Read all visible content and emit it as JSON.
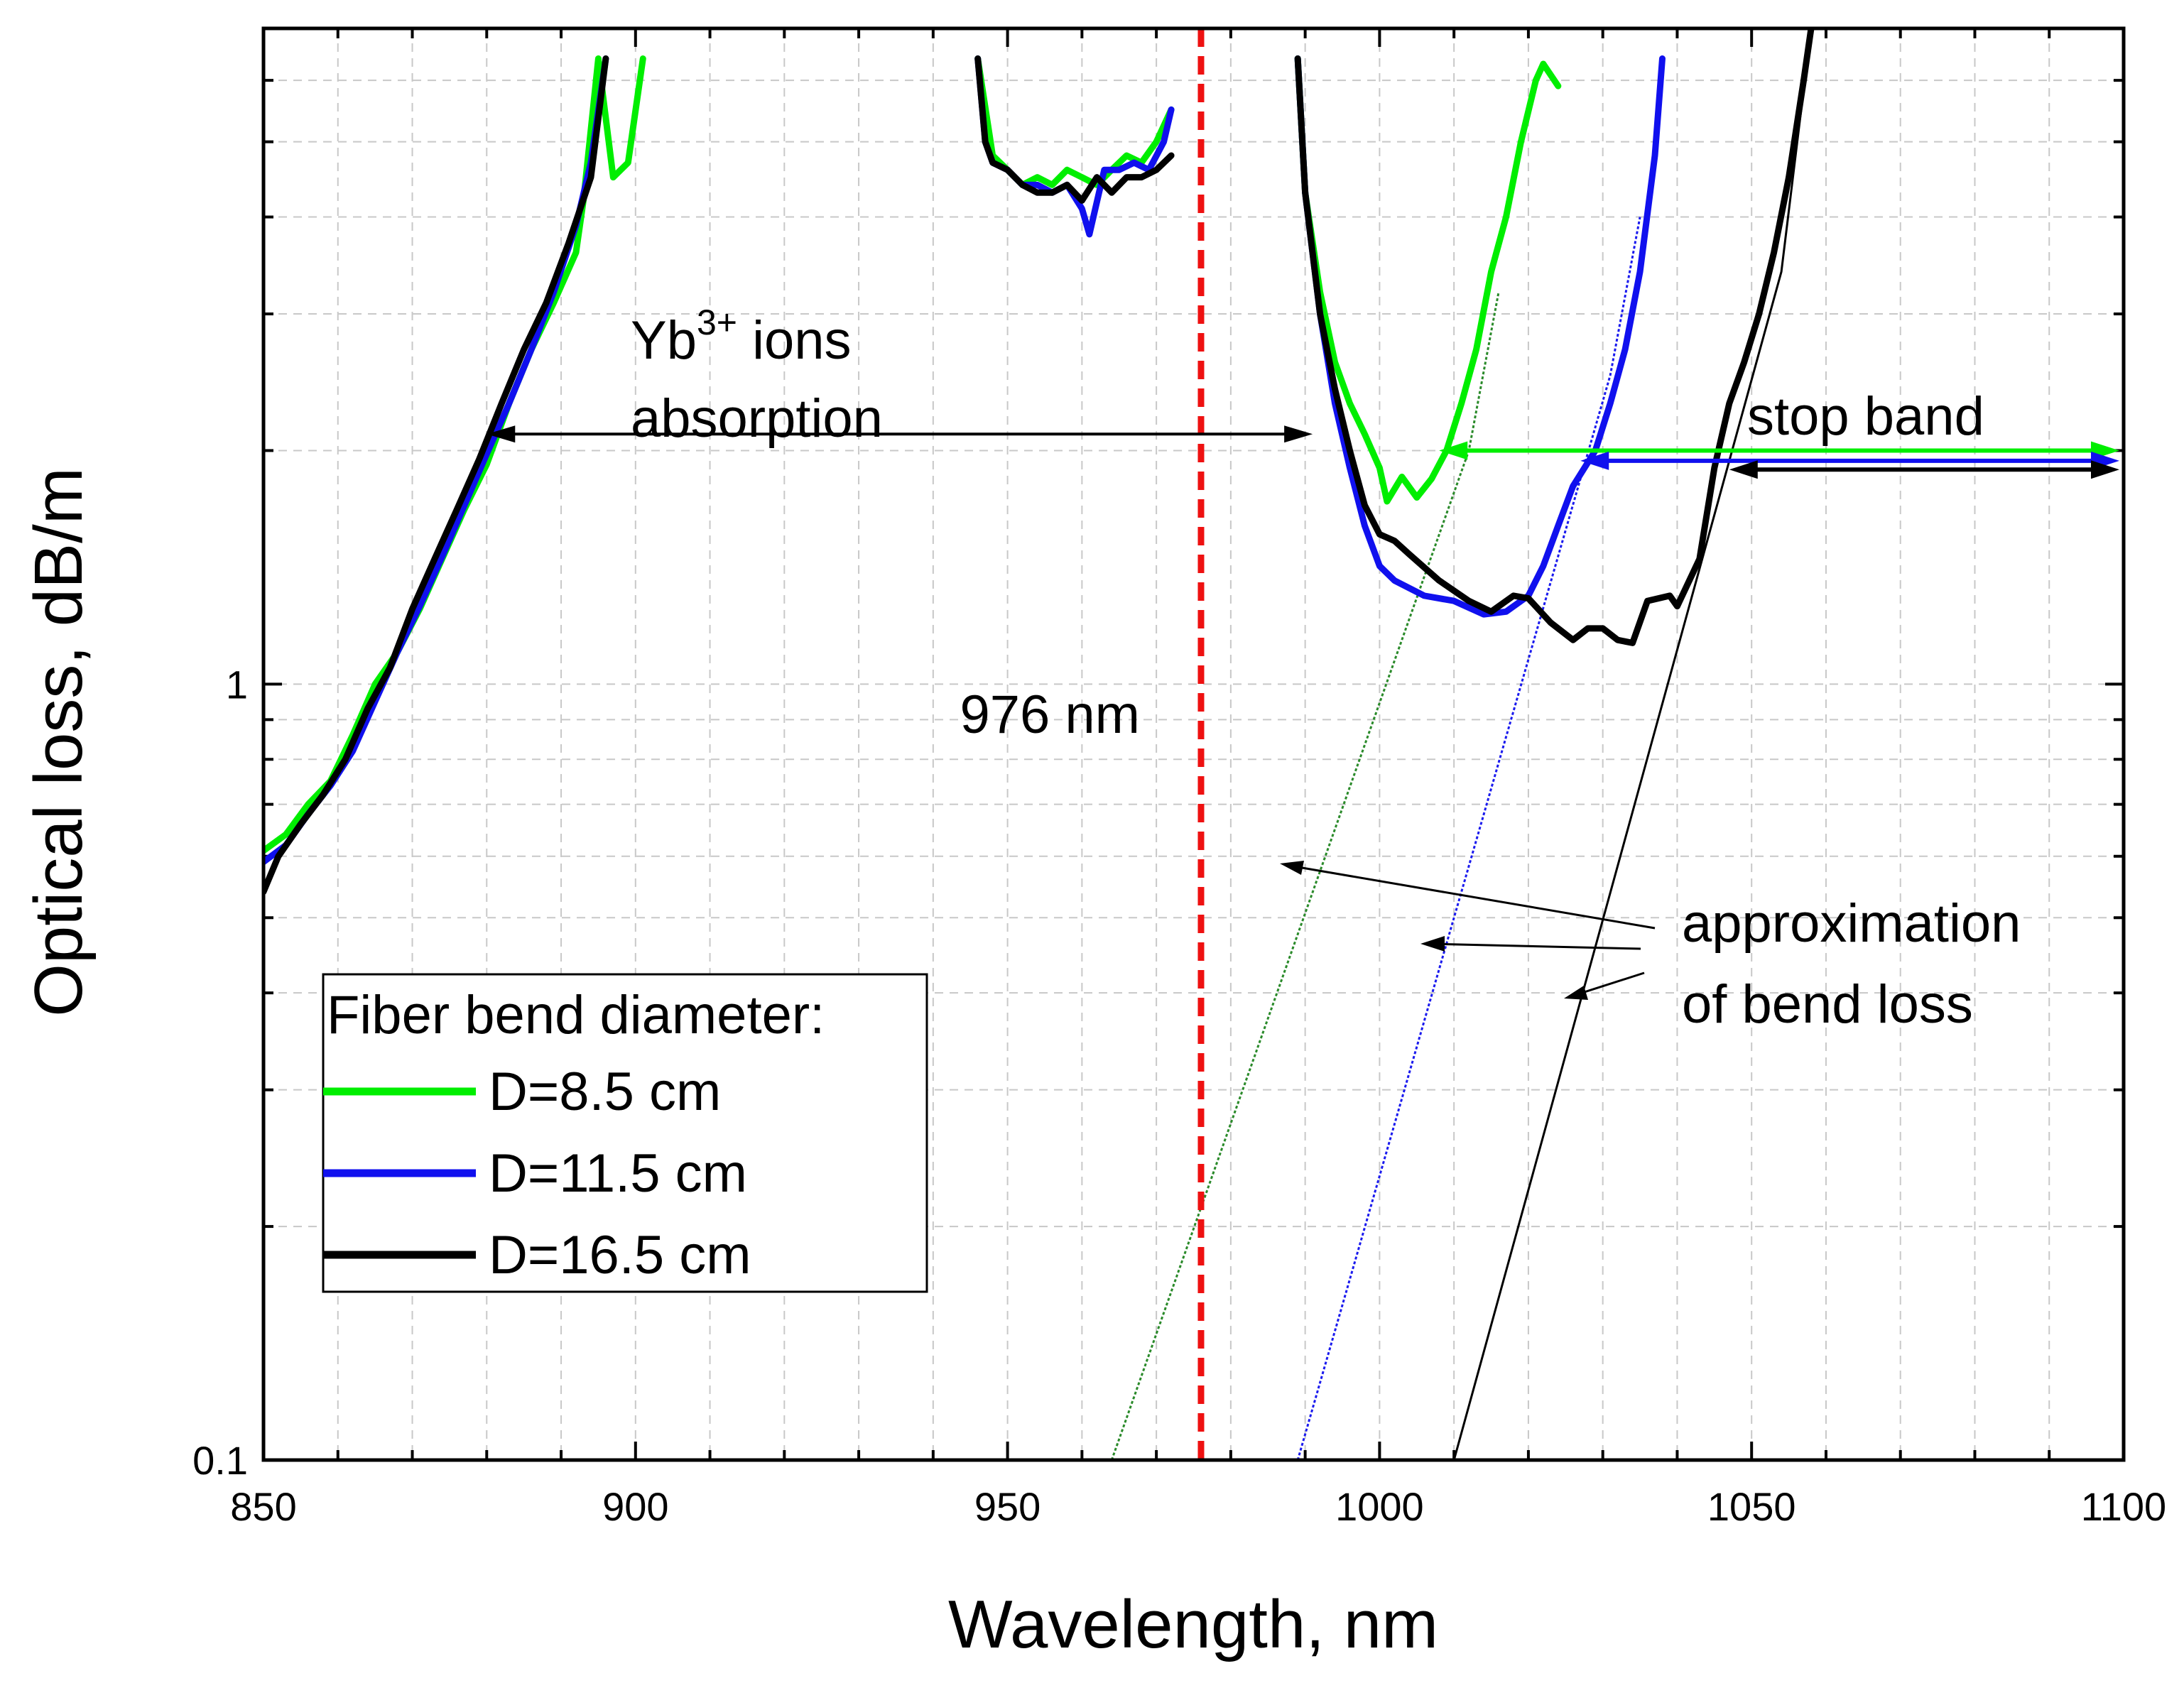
{
  "chart_data": {
    "type": "line",
    "title": "",
    "xlabel": "Wavelength, nm",
    "ylabel": "Optical loss, dB/m",
    "xlim": [
      850,
      1100
    ],
    "ylim": [
      0.1,
      7
    ],
    "yscale": "log",
    "grid": true,
    "x_ticks": [
      850,
      900,
      950,
      1000,
      1050,
      1100
    ],
    "x_tick_labels": [
      "850",
      "900",
      "950",
      "1000",
      "1050",
      "1100"
    ],
    "y_ticks": [
      0.1,
      1
    ],
    "y_tick_labels": [
      "0.1",
      "1"
    ],
    "series": [
      {
        "name": "D=8.5 cm",
        "color": "#00ee00",
        "segments": [
          [
            [
              850,
              0.61
            ],
            [
              853,
              0.64
            ],
            [
              856,
              0.7
            ],
            [
              859,
              0.75
            ],
            [
              862,
              0.86
            ],
            [
              865,
              1.0
            ],
            [
              868,
              1.1
            ],
            [
              871,
              1.25
            ],
            [
              874,
              1.45
            ],
            [
              877,
              1.68
            ],
            [
              880,
              1.92
            ],
            [
              883,
              2.3
            ],
            [
              886,
              2.7
            ],
            [
              889,
              3.1
            ],
            [
              892,
              3.6
            ],
            [
              893,
              4.2
            ],
            [
              895,
              6.4
            ],
            [
              897,
              4.5
            ],
            [
              899,
              4.7
            ],
            [
              901,
              6.4
            ]
          ],
          [
            [
              946,
              6.4
            ],
            [
              948,
              4.8
            ],
            [
              950,
              4.6
            ],
            [
              952,
              4.4
            ],
            [
              954,
              4.5
            ],
            [
              956,
              4.4
            ],
            [
              958,
              4.6
            ],
            [
              960,
              4.5
            ],
            [
              962,
              4.4
            ],
            [
              964,
              4.6
            ],
            [
              966,
              4.8
            ],
            [
              968,
              4.7
            ],
            [
              970,
              5.0
            ],
            [
              972,
              5.5
            ]
          ],
          [
            [
              989,
              6.4
            ],
            [
              990,
              4.3
            ],
            [
              992,
              3.2
            ],
            [
              994,
              2.6
            ],
            [
              996,
              2.3
            ],
            [
              998,
              2.1
            ],
            [
              1000,
              1.9
            ],
            [
              1001,
              1.72
            ],
            [
              1003,
              1.85
            ],
            [
              1005,
              1.74
            ],
            [
              1007,
              1.84
            ],
            [
              1009,
              2.0
            ],
            [
              1011,
              2.3
            ],
            [
              1013,
              2.7
            ],
            [
              1015,
              3.4
            ],
            [
              1017,
              4.0
            ],
            [
              1019,
              5.0
            ],
            [
              1021,
              6.0
            ],
            [
              1022,
              6.3
            ],
            [
              1024,
              5.9
            ]
          ]
        ]
      },
      {
        "name": "D=11.5 cm",
        "color": "#1010ee",
        "segments": [
          [
            [
              850,
              0.59
            ],
            [
              853,
              0.62
            ],
            [
              856,
              0.68
            ],
            [
              859,
              0.74
            ],
            [
              862,
              0.82
            ],
            [
              865,
              0.95
            ],
            [
              868,
              1.1
            ],
            [
              871,
              1.26
            ],
            [
              874,
              1.46
            ],
            [
              877,
              1.7
            ],
            [
              880,
              1.98
            ],
            [
              883,
              2.3
            ],
            [
              886,
              2.7
            ],
            [
              889,
              3.2
            ],
            [
              892,
              3.9
            ],
            [
              894,
              4.7
            ],
            [
              896,
              6.4
            ]
          ],
          [
            [
              946,
              6.4
            ],
            [
              947,
              5.0
            ],
            [
              948,
              4.7
            ],
            [
              950,
              4.6
            ],
            [
              952,
              4.4
            ],
            [
              954,
              4.4
            ],
            [
              956,
              4.3
            ],
            [
              958,
              4.4
            ],
            [
              960,
              4.1
            ],
            [
              961,
              3.8
            ],
            [
              963,
              4.6
            ],
            [
              965,
              4.6
            ],
            [
              967,
              4.7
            ],
            [
              969,
              4.6
            ],
            [
              971,
              5.0
            ],
            [
              972,
              5.5
            ]
          ],
          [
            [
              989,
              6.4
            ],
            [
              990,
              4.3
            ],
            [
              992,
              3.0
            ],
            [
              994,
              2.3
            ],
            [
              996,
              1.9
            ],
            [
              998,
              1.6
            ],
            [
              1000,
              1.42
            ],
            [
              1002,
              1.36
            ],
            [
              1006,
              1.3
            ],
            [
              1010,
              1.28
            ],
            [
              1014,
              1.23
            ],
            [
              1017,
              1.24
            ],
            [
              1020,
              1.3
            ],
            [
              1022,
              1.42
            ],
            [
              1024,
              1.6
            ],
            [
              1026,
              1.8
            ],
            [
              1029,
              2.0
            ],
            [
              1031,
              2.3
            ],
            [
              1033,
              2.7
            ],
            [
              1035,
              3.4
            ],
            [
              1037,
              4.8
            ],
            [
              1038,
              6.4
            ]
          ]
        ]
      },
      {
        "name": "D=16.5 cm",
        "color": "#000000",
        "segments": [
          [
            [
              850,
              0.54
            ],
            [
              852,
              0.6
            ],
            [
              855,
              0.66
            ],
            [
              858,
              0.72
            ],
            [
              861,
              0.8
            ],
            [
              864,
              0.93
            ],
            [
              867,
              1.05
            ],
            [
              870,
              1.25
            ],
            [
              873,
              1.45
            ],
            [
              876,
              1.68
            ],
            [
              879,
              1.95
            ],
            [
              882,
              2.3
            ],
            [
              885,
              2.7
            ],
            [
              888,
              3.1
            ],
            [
              891,
              3.7
            ],
            [
              894,
              4.5
            ],
            [
              896,
              6.4
            ]
          ],
          [
            [
              946,
              6.4
            ],
            [
              947,
              5.0
            ],
            [
              948,
              4.7
            ],
            [
              950,
              4.6
            ],
            [
              952,
              4.4
            ],
            [
              954,
              4.3
            ],
            [
              956,
              4.3
            ],
            [
              958,
              4.4
            ],
            [
              960,
              4.2
            ],
            [
              962,
              4.5
            ],
            [
              964,
              4.3
            ],
            [
              966,
              4.5
            ],
            [
              968,
              4.5
            ],
            [
              970,
              4.6
            ],
            [
              972,
              4.8
            ]
          ],
          [
            [
              989,
              6.4
            ],
            [
              990,
              4.3
            ],
            [
              992,
              3.0
            ],
            [
              994,
              2.4
            ],
            [
              996,
              2.0
            ],
            [
              998,
              1.7
            ],
            [
              1000,
              1.56
            ],
            [
              1002,
              1.53
            ],
            [
              1004,
              1.47
            ],
            [
              1008,
              1.36
            ],
            [
              1012,
              1.28
            ],
            [
              1015,
              1.24
            ],
            [
              1018,
              1.3
            ],
            [
              1020,
              1.29
            ],
            [
              1023,
              1.2
            ],
            [
              1026,
              1.14
            ],
            [
              1028,
              1.18
            ],
            [
              1030,
              1.18
            ],
            [
              1032,
              1.14
            ],
            [
              1034,
              1.13
            ],
            [
              1036,
              1.28
            ],
            [
              1039,
              1.3
            ],
            [
              1040,
              1.26
            ],
            [
              1043,
              1.45
            ],
            [
              1045,
              1.9
            ],
            [
              1047,
              2.3
            ],
            [
              1049,
              2.6
            ],
            [
              1051,
              3.0
            ],
            [
              1053,
              3.6
            ],
            [
              1055,
              4.5
            ],
            [
              1057,
              6.0
            ],
            [
              1058,
              7.0
            ]
          ]
        ]
      }
    ],
    "approximation_lines": [
      {
        "name": "approximation D=8.5 cm",
        "color": "#2a8a2a",
        "style": "dotted",
        "points": [
          [
            964,
            0.1
          ],
          [
            1012,
            2.0
          ],
          [
            1016,
            3.2
          ]
        ]
      },
      {
        "name": "approximation D=11.5 cm",
        "color": "#1a1aee",
        "style": "dotted",
        "points": [
          [
            989,
            0.1
          ],
          [
            1031,
            2.5
          ],
          [
            1035,
            4.0
          ]
        ]
      },
      {
        "name": "approximation D=16.5 cm",
        "color": "#000000",
        "style": "solid",
        "points": [
          [
            1010,
            0.1
          ],
          [
            1054,
            3.4
          ],
          [
            1058,
            7.0
          ]
        ]
      }
    ],
    "reference_line": {
      "x": 976,
      "label": "976 nm",
      "color": "#ee1111"
    },
    "annotations": {
      "absorption_line1_prefix": "Yb",
      "absorption_line1_sup": "3+",
      "absorption_line1_suffix": " ions",
      "absorption_line2": "absorption",
      "absorption_range": [
        880,
        991
      ],
      "absorption_y": 2.1,
      "stop_band": "stop band",
      "stop_band_arrows": [
        {
          "series": "D=8.5 cm",
          "color": "#00ee00",
          "from_x": 1008,
          "to_x": 1100,
          "y": 2.0
        },
        {
          "series": "D=11.5 cm",
          "color": "#1010ee",
          "from_x": 1027,
          "to_x": 1100,
          "y": 1.94
        },
        {
          "series": "D=16.5 cm",
          "color": "#000000",
          "from_x": 1047,
          "to_x": 1100,
          "y": 1.89
        }
      ],
      "approximation_line1": "approximation",
      "approximation_line2": "of bend loss"
    },
    "legend": {
      "title": "Fiber bend diameter:",
      "position": "bottom-left",
      "entries": [
        "D=8.5 cm",
        "D=11.5 cm",
        "D=16.5 cm"
      ]
    }
  }
}
